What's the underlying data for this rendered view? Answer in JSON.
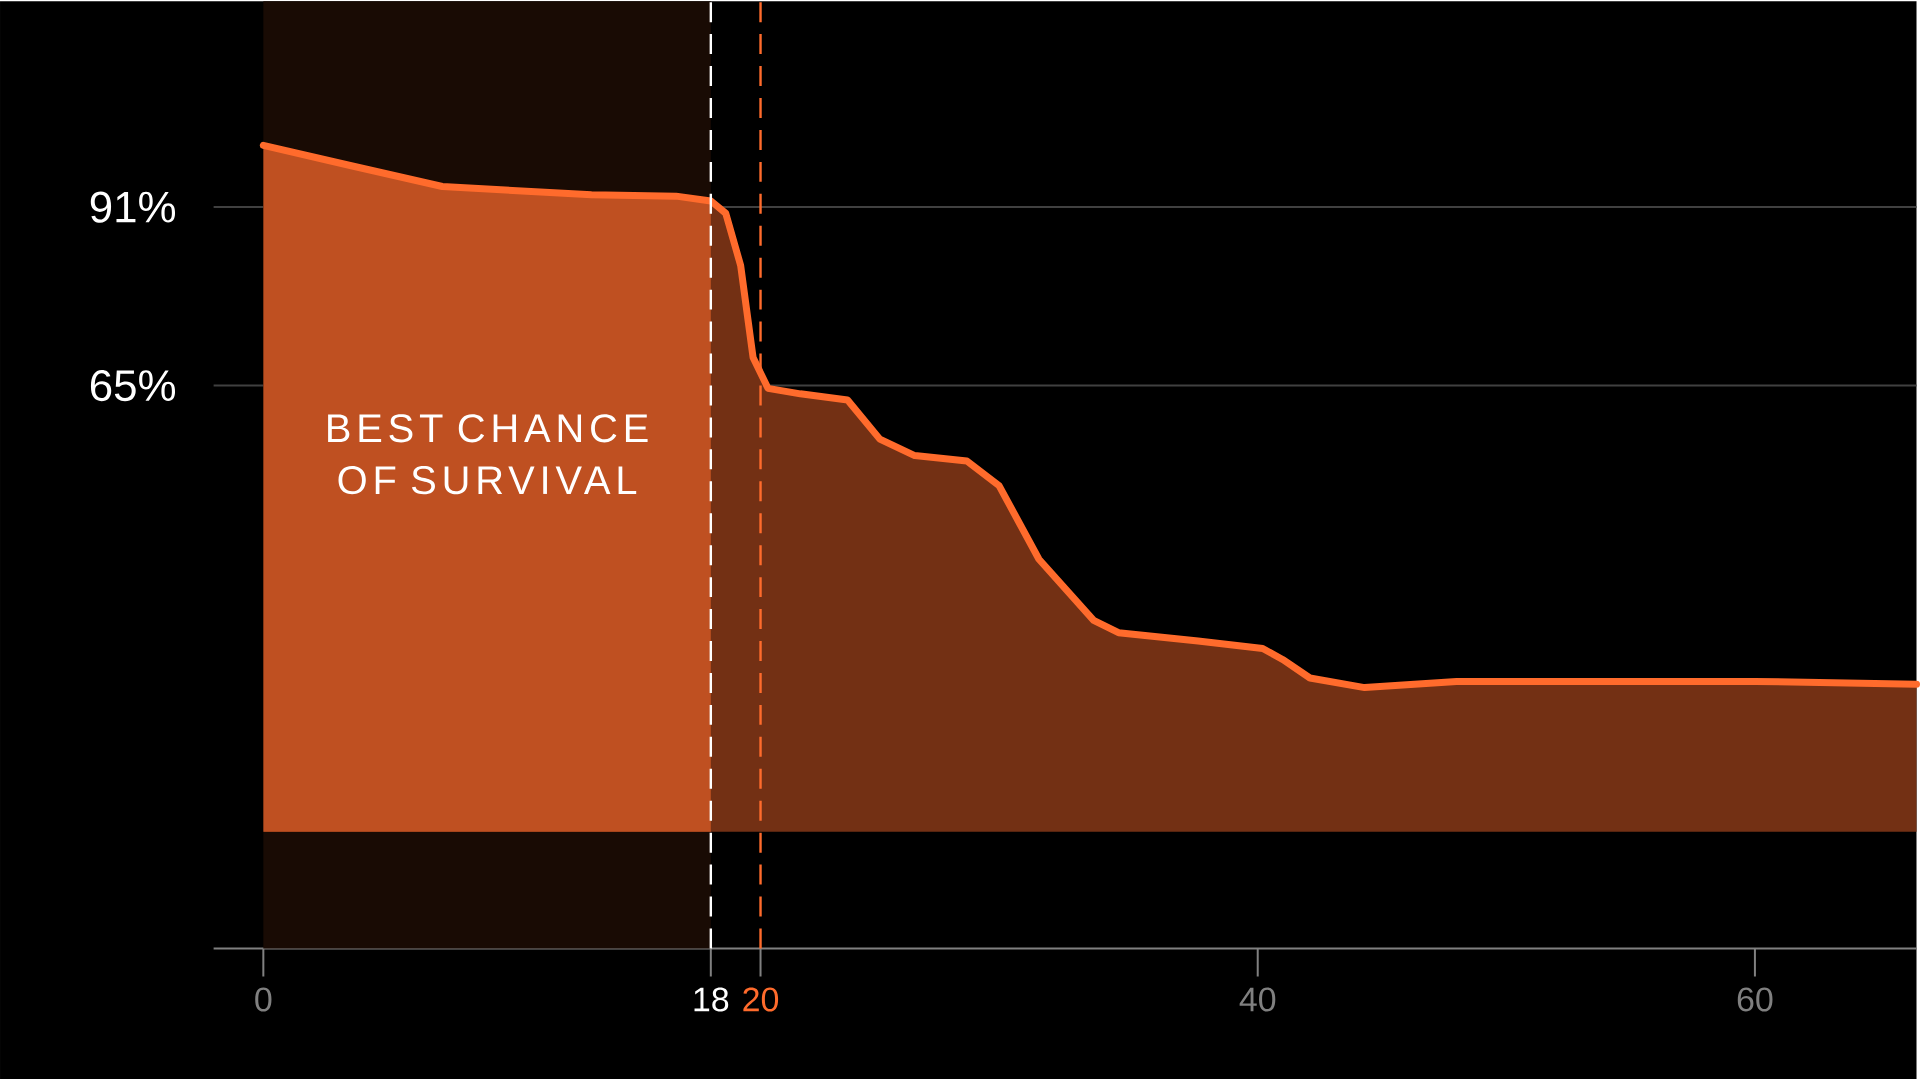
{
  "chart_data": {
    "type": "area",
    "color": "#ff6b2c",
    "x": [
      0,
      3.45,
      7.2,
      13.2,
      16.6,
      18,
      18.6,
      19.2,
      19.7,
      20.3,
      21.6,
      23.5,
      24.8,
      26.2,
      28.3,
      29.6,
      31.2,
      33.4,
      34.4,
      37.6,
      40.2,
      41.0,
      42.1,
      44.3,
      48.0,
      60,
      66.5
    ],
    "values": [
      100,
      97.1,
      94.0,
      92.8,
      92.6,
      91.9,
      90.1,
      82.5,
      69.1,
      64.6,
      63.8,
      62.9,
      57.2,
      54.8,
      54.0,
      50.4,
      39.7,
      30.8,
      29.0,
      27.8,
      26.7,
      25.1,
      22.4,
      21.0,
      21.9,
      21.9,
      21.5
    ],
    "xlim": [
      -2,
      66.5
    ],
    "ylim": [
      -17,
      121
    ],
    "xticks": [
      0,
      18,
      20,
      40,
      60
    ],
    "yticks": [
      {
        "value": 91,
        "label": "91%"
      },
      {
        "value": 65,
        "label": "65%"
      }
    ],
    "grid": "y",
    "ref_lines": [
      {
        "axis": "x",
        "value": 18,
        "color": "#ffffff",
        "line_style": "dashed"
      },
      {
        "axis": "x",
        "value": 20,
        "color": "#ff6b2c",
        "line_style": "dashed"
      }
    ],
    "bands": [
      {
        "axis": "x",
        "from": 0,
        "to": 18,
        "label": "BEST CHANCE OF SURVIVAL"
      }
    ]
  }
}
